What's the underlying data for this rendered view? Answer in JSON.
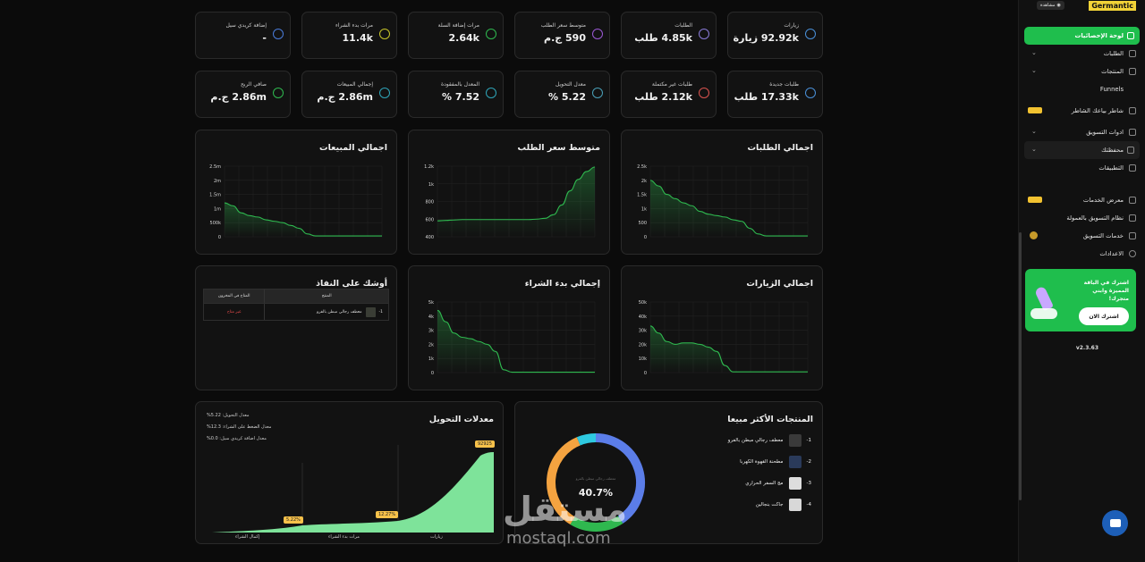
{
  "sidebar": {
    "logo": "Germantic",
    "view_button": "مشاهدة",
    "items": [
      {
        "label": "لوحة الإحصائيات",
        "icon": "dashboard-icon"
      },
      {
        "label": "الطلبات",
        "icon": "box-icon"
      },
      {
        "label": "المنتجات",
        "icon": "product-icon"
      },
      {
        "label": "Funnels",
        "icon": ""
      },
      {
        "label": "شاطر بياعك الشاطر",
        "icon": "robot-icon"
      },
      {
        "label": "ادوات التسويق",
        "icon": "megaphone-icon"
      },
      {
        "label": "محفظتك",
        "icon": "wallet-icon"
      },
      {
        "label": "التطبيقات",
        "icon": "apps-icon"
      },
      {
        "label": "معرض الخدمات",
        "icon": "services-icon"
      },
      {
        "label": "نظام التسويق بالعمولة",
        "icon": "affiliate-icon"
      },
      {
        "label": "خدمات التسويق",
        "icon": "marketing-icon"
      },
      {
        "label": "الاعدادات",
        "icon": "gear-icon"
      }
    ],
    "promo": {
      "text": "اشترك في الباقة المميزة وابني متجرك!",
      "button": "اشترك الان"
    },
    "version": "v2.3.63"
  },
  "stats_row1": [
    {
      "label": "زيارات",
      "value": "92.92k زيارة",
      "color": "#4a90d9"
    },
    {
      "label": "الطلبات",
      "value": "4.85k طلب",
      "color": "#8a7bd8"
    },
    {
      "label": "متوسط سعر الطلب",
      "value": "590 ج.م",
      "color": "#9b59d6"
    },
    {
      "label": "مرات إضافة السلة",
      "value": "2.64k",
      "color": "#2fb84f"
    },
    {
      "label": "مرات بدء الشراء",
      "value": "11.4k",
      "color": "#c8c52a"
    },
    {
      "label": "إضافة كريدي سيل",
      "value": "-",
      "color": "#4a7bd9"
    }
  ],
  "stats_row2": [
    {
      "label": "طلبات جديدة",
      "value": "17.33k طلب",
      "color": "#4a90d9"
    },
    {
      "label": "طلبات غير مكتملة",
      "value": "2.12k طلب",
      "color": "#d9534f"
    },
    {
      "label": "معدل التحويل",
      "value": "5.22 %",
      "color": "#4aa0b8"
    },
    {
      "label": "المعدل بالمفقودة",
      "value": "7.52 %",
      "color": "#2fa4b8"
    },
    {
      "label": "إجمالي المبيعات",
      "value": "2.86m ج.م",
      "color": "#2fa4b8"
    },
    {
      "label": "صافي الربح",
      "value": "2.86m ج.م",
      "color": "#2fb84f"
    }
  ],
  "charts": {
    "orders": {
      "title": "اجمالي الطلبات"
    },
    "avg_price": {
      "title": "متوسط سعر الطلب"
    },
    "sales": {
      "title": "اجمالي المبيعات"
    },
    "visits": {
      "title": "اجمالي الزيارات"
    },
    "checkout": {
      "title": "إجمالي بدء الشراء"
    }
  },
  "stock": {
    "title": "أوشك على النفاذ",
    "col_product": "المنتج",
    "col_remaining": "المتاح في المخزون",
    "rows": [
      {
        "num": "1-",
        "name": "معطف رجالي مبطن بالفرو",
        "status": "غير متاح"
      }
    ]
  },
  "top_products": {
    "title": "المنتجات الأكثر مبيعا",
    "items": [
      {
        "num": "1-",
        "name": "معطف رجالي مبطن بالفرو"
      },
      {
        "num": "2-",
        "name": "مطحنة القهوة الكهربا"
      },
      {
        "num": "3-",
        "name": "مج السفر الحراري"
      },
      {
        "num": "4-",
        "name": "جاكت بنجالين"
      }
    ],
    "center_value": "40.7%",
    "center_label": "معطف رجالي مبطن بالفرو"
  },
  "conversion": {
    "title": "معدلات التحويل",
    "legend": [
      "معدل التحويل: 5.22%",
      "معدل الضغط على الشراء: 12.3%",
      "معدل اضافة كريدي سيل: 0.0%"
    ],
    "badges": [
      "5.22%",
      "12.27%",
      "92925"
    ],
    "labels": [
      "إكمال الشراء",
      "مرات بدء الشراء",
      "زيارات"
    ]
  },
  "watermark": {
    "text": "مستقل",
    "sub": "mostaql.com"
  },
  "chart_data": [
    {
      "type": "area",
      "title": "اجمالي الطلبات",
      "x": [
        1,
        2,
        3,
        4,
        5,
        6,
        7,
        8,
        9,
        10,
        11,
        12,
        13,
        14,
        15,
        16,
        17,
        18,
        19,
        20
      ],
      "values": [
        2000,
        1800,
        1500,
        1350,
        1200,
        1100,
        900,
        800,
        750,
        700,
        600,
        550,
        300,
        100,
        30,
        30,
        30,
        30,
        30,
        30
      ],
      "ylim": [
        0,
        2500
      ],
      "yticks": [
        "2.5k",
        "2k",
        "1.5k",
        "1k",
        "500",
        "0"
      ]
    },
    {
      "type": "area",
      "title": "متوسط سعر الطلب",
      "x": [
        1,
        2,
        3,
        4,
        5,
        6,
        7,
        8,
        9,
        10,
        11,
        12,
        13,
        14,
        15,
        16,
        17,
        18,
        19,
        20
      ],
      "values": [
        580,
        585,
        590,
        595,
        595,
        595,
        595,
        595,
        595,
        595,
        595,
        595,
        600,
        610,
        650,
        760,
        920,
        1050,
        1140,
        1190
      ],
      "ylim": [
        400,
        1200
      ],
      "yticks": [
        "1.2k",
        "1k",
        "800",
        "600",
        "400"
      ]
    },
    {
      "type": "area",
      "title": "اجمالي المبيعات",
      "x": [
        1,
        2,
        3,
        4,
        5,
        6,
        7,
        8,
        9,
        10,
        11,
        12,
        13,
        14,
        15,
        16,
        17,
        18,
        19,
        20
      ],
      "values": [
        1200000,
        1100000,
        850000,
        750000,
        700000,
        600000,
        550000,
        500000,
        400000,
        300000,
        100000,
        30000,
        30000,
        30000,
        30000,
        30000,
        30000,
        30000,
        30000,
        30000
      ],
      "ylim": [
        0,
        2500000
      ],
      "yticks": [
        "2.5m",
        "2m",
        "1.5m",
        "1m",
        "500k",
        "0"
      ]
    },
    {
      "type": "area",
      "title": "اجمالي الزيارات",
      "x": [
        1,
        2,
        3,
        4,
        5,
        6,
        7,
        8,
        9,
        10,
        11,
        12,
        13,
        14,
        15,
        16,
        17,
        18,
        19,
        20
      ],
      "values": [
        33000,
        28000,
        22000,
        20000,
        21000,
        21000,
        20000,
        18000,
        15000,
        5000,
        500,
        500,
        500,
        500,
        500,
        500,
        500,
        500,
        500,
        500
      ],
      "ylim": [
        0,
        50000
      ],
      "yticks": [
        "50k",
        "40k",
        "30k",
        "20k",
        "10k",
        "0"
      ]
    },
    {
      "type": "area",
      "title": "إجمالي بدء الشراء",
      "x": [
        1,
        2,
        3,
        4,
        5,
        6,
        7,
        8,
        9,
        10,
        11,
        12,
        13,
        14,
        15,
        16,
        17,
        18,
        19,
        20
      ],
      "values": [
        4400,
        3600,
        2800,
        2500,
        2400,
        2200,
        2000,
        1500,
        200,
        30,
        30,
        30,
        30,
        30,
        30,
        30,
        30,
        30,
        30,
        30
      ],
      "ylim": [
        0,
        5000
      ],
      "yticks": [
        "5k",
        "4k",
        "3k",
        "2k",
        "1k",
        "0"
      ]
    },
    {
      "type": "pie",
      "title": "المنتجات الأكثر مبيعا",
      "categories": [
        "معطف رجالي مبطن بالفرو",
        "جاكت بنجالين",
        "مطحنة القهوة الكهربا",
        "مج السفر الحراري"
      ],
      "values": [
        40.7,
        18,
        35,
        6.3
      ],
      "colors": [
        "#5b7de8",
        "#2fb84f",
        "#f4a340",
        "#2ec9e0"
      ]
    }
  ]
}
